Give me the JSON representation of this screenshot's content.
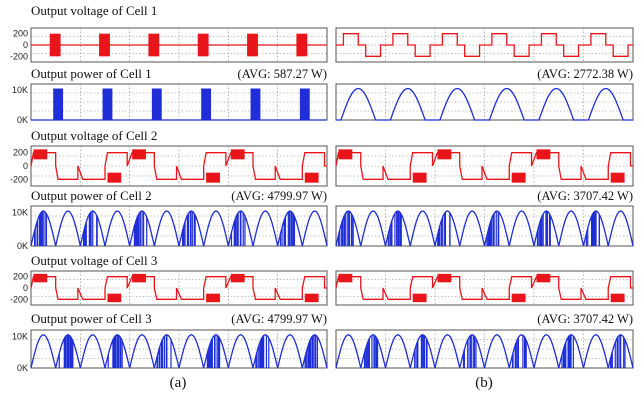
{
  "colors": {
    "voltage": "#e8151b",
    "power": "#1f2ed6",
    "grid": "#8a8a8a",
    "frame": "#555555"
  },
  "column_labels": [
    "(a)",
    "(b)"
  ],
  "chart_data": [
    {
      "type": "line",
      "column": "a",
      "row": 0,
      "quantity": "voltage",
      "cell": 1,
      "title": "Output voltage of Cell 1",
      "avg_label": "",
      "yticks": [
        "200",
        "0",
        "-200"
      ],
      "ylim": [
        -300,
        300
      ],
      "x_periods": 6,
      "pattern": "block"
    },
    {
      "type": "line",
      "column": "b",
      "row": 0,
      "quantity": "voltage",
      "cell": 1,
      "title": "",
      "avg_label": "",
      "yticks": [],
      "ylim": [
        -300,
        300
      ],
      "x_periods": 6,
      "pattern": "square"
    },
    {
      "type": "area",
      "column": "a",
      "row": 1,
      "quantity": "power",
      "cell": 1,
      "title": "Output power of Cell 1",
      "avg_label": "(AVG: 587.27 W)",
      "yticks": [
        "10K",
        "0K"
      ],
      "ylim": [
        0,
        12000
      ],
      "x_periods": 6,
      "pattern": "narrow-burst"
    },
    {
      "type": "line",
      "column": "b",
      "row": 1,
      "quantity": "power",
      "cell": 1,
      "title": "",
      "avg_label": "(AVG: 2772.38 W)",
      "yticks": [],
      "ylim": [
        0,
        12000
      ],
      "x_periods": 6,
      "pattern": "arch"
    },
    {
      "type": "line",
      "column": "a",
      "row": 2,
      "quantity": "voltage",
      "cell": 2,
      "title": "Output voltage of Cell 2",
      "avg_label": "",
      "yticks": [
        "200",
        "0",
        "-200"
      ],
      "ylim": [
        -300,
        300
      ],
      "x_periods": 6,
      "pattern": "multilevel"
    },
    {
      "type": "line",
      "column": "b",
      "row": 2,
      "quantity": "voltage",
      "cell": 2,
      "title": "",
      "avg_label": "",
      "yticks": [],
      "ylim": [
        -300,
        300
      ],
      "x_periods": 6,
      "pattern": "multilevel"
    },
    {
      "type": "line",
      "column": "a",
      "row": 3,
      "quantity": "power",
      "cell": 2,
      "title": "Output power of Cell 2",
      "avg_label": "(AVG: 4799.97 W)",
      "yticks": [
        "10K",
        "0K"
      ],
      "ylim": [
        0,
        12000
      ],
      "x_periods": 12,
      "pattern": "arch-burst"
    },
    {
      "type": "line",
      "column": "b",
      "row": 3,
      "quantity": "power",
      "cell": 2,
      "title": "",
      "avg_label": "(AVG: 3707.42 W)",
      "yticks": [],
      "ylim": [
        0,
        12000
      ],
      "x_periods": 12,
      "pattern": "arch-burst"
    },
    {
      "type": "line",
      "column": "a",
      "row": 4,
      "quantity": "voltage",
      "cell": 3,
      "title": "Output voltage of Cell 3",
      "avg_label": "",
      "yticks": [
        "200",
        "0",
        "-200"
      ],
      "ylim": [
        -300,
        300
      ],
      "x_periods": 6,
      "pattern": "multilevel"
    },
    {
      "type": "line",
      "column": "b",
      "row": 4,
      "quantity": "voltage",
      "cell": 3,
      "title": "",
      "avg_label": "",
      "yticks": [],
      "ylim": [
        -300,
        300
      ],
      "x_periods": 6,
      "pattern": "multilevel"
    },
    {
      "type": "line",
      "column": "a",
      "row": 5,
      "quantity": "power",
      "cell": 3,
      "title": "Output power of Cell 3",
      "avg_label": "(AVG: 4799.97 W)",
      "yticks": [
        "10K",
        "0K"
      ],
      "ylim": [
        0,
        12000
      ],
      "x_periods": 12,
      "pattern": "arch-burst"
    },
    {
      "type": "line",
      "column": "b",
      "row": 5,
      "quantity": "power",
      "cell": 3,
      "title": "",
      "avg_label": "(AVG: 3707.42 W)",
      "yticks": [],
      "ylim": [
        0,
        12000
      ],
      "x_periods": 12,
      "pattern": "arch-burst"
    }
  ]
}
